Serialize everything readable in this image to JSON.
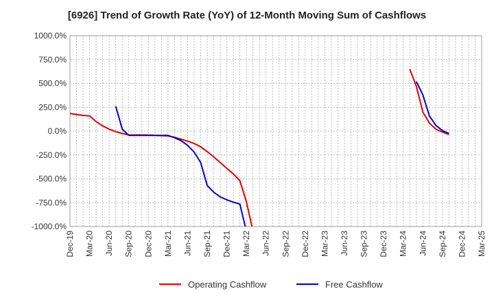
{
  "chart_data": {
    "type": "line",
    "title": "[6926]  Trend of Growth Rate (YoY) of 12-Month Moving Sum of Cashflows",
    "xlabel": "",
    "ylabel": "",
    "x_ticks": [
      "Dec-19",
      "Mar-20",
      "Jun-20",
      "Sep-20",
      "Dec-20",
      "Mar-21",
      "Jun-21",
      "Sep-21",
      "Dec-21",
      "Mar-22",
      "Jun-22",
      "Sep-22",
      "Dec-22",
      "Mar-23",
      "Jun-23",
      "Sep-23",
      "Dec-23",
      "Mar-24",
      "Jun-24",
      "Sep-24",
      "Dec-24",
      "Mar-25"
    ],
    "y_ticks": [
      "1000.0%",
      "750.0%",
      "500.0%",
      "250.0%",
      "0.0%",
      "-250.0%",
      "-500.0%",
      "-750.0%",
      "-1000.0%"
    ],
    "ylim": [
      -1000,
      1000
    ],
    "grid": true,
    "legend_position": "bottom",
    "series": [
      {
        "name": "Operating Cashflow",
        "color": "#dd0000",
        "points": [
          [
            "2019-12",
            185
          ],
          [
            "2020-01",
            175
          ],
          [
            "2020-02",
            165
          ],
          [
            "2020-03",
            160
          ],
          [
            "2020-04",
            100
          ],
          [
            "2020-05",
            55
          ],
          [
            "2020-06",
            20
          ],
          [
            "2020-07",
            -5
          ],
          [
            "2020-08",
            -25
          ],
          [
            "2020-09",
            -40
          ],
          [
            "2020-10",
            -40
          ],
          [
            "2020-11",
            -40
          ],
          [
            "2020-12",
            -42
          ],
          [
            "2021-01",
            -45
          ],
          [
            "2021-02",
            -48
          ],
          [
            "2021-03",
            -50
          ],
          [
            "2021-04",
            -65
          ],
          [
            "2021-05",
            -85
          ],
          [
            "2021-06",
            -105
          ],
          [
            "2021-07",
            -130
          ],
          [
            "2021-08",
            -165
          ],
          [
            "2021-09",
            -215
          ],
          [
            "2021-10",
            -270
          ],
          [
            "2021-11",
            -330
          ],
          [
            "2021-12",
            -390
          ],
          [
            "2022-01",
            -450
          ],
          [
            "2022-02",
            -520
          ],
          [
            "2022-03",
            -740
          ],
          [
            "2022-04",
            -1050
          ]
        ]
      },
      {
        "name": "Free Cashflow",
        "color": "#0000cc",
        "points": [
          [
            "2020-07",
            260
          ],
          [
            "2020-08",
            20
          ],
          [
            "2020-09",
            -45
          ],
          [
            "2020-10",
            -45
          ],
          [
            "2020-11",
            -45
          ],
          [
            "2020-12",
            -45
          ],
          [
            "2021-01",
            -45
          ],
          [
            "2021-02",
            -45
          ],
          [
            "2021-03",
            -45
          ],
          [
            "2021-04",
            -70
          ],
          [
            "2021-05",
            -100
          ],
          [
            "2021-06",
            -150
          ],
          [
            "2021-07",
            -220
          ],
          [
            "2021-08",
            -330
          ],
          [
            "2021-09",
            -570
          ],
          [
            "2021-10",
            -640
          ],
          [
            "2021-11",
            -690
          ],
          [
            "2021-12",
            -720
          ],
          [
            "2022-01",
            -745
          ],
          [
            "2022-02",
            -765
          ],
          [
            "2022-03",
            -1050
          ]
        ]
      },
      {
        "name": "Operating Cashflow",
        "color": "#dd0000",
        "continuation": true,
        "points": [
          [
            "2024-04",
            650
          ],
          [
            "2024-05",
            470
          ],
          [
            "2024-06",
            200
          ],
          [
            "2024-07",
            85
          ],
          [
            "2024-08",
            20
          ],
          [
            "2024-09",
            -10
          ],
          [
            "2024-10",
            -35
          ]
        ]
      },
      {
        "name": "Free Cashflow",
        "color": "#0000cc",
        "continuation": true,
        "points": [
          [
            "2024-05",
            520
          ],
          [
            "2024-06",
            380
          ],
          [
            "2024-07",
            160
          ],
          [
            "2024-08",
            60
          ],
          [
            "2024-09",
            5
          ],
          [
            "2024-10",
            -25
          ]
        ]
      }
    ],
    "legend": [
      {
        "label": "Operating Cashflow",
        "color": "#dd0000"
      },
      {
        "label": "Free Cashflow",
        "color": "#0000cc"
      }
    ]
  }
}
